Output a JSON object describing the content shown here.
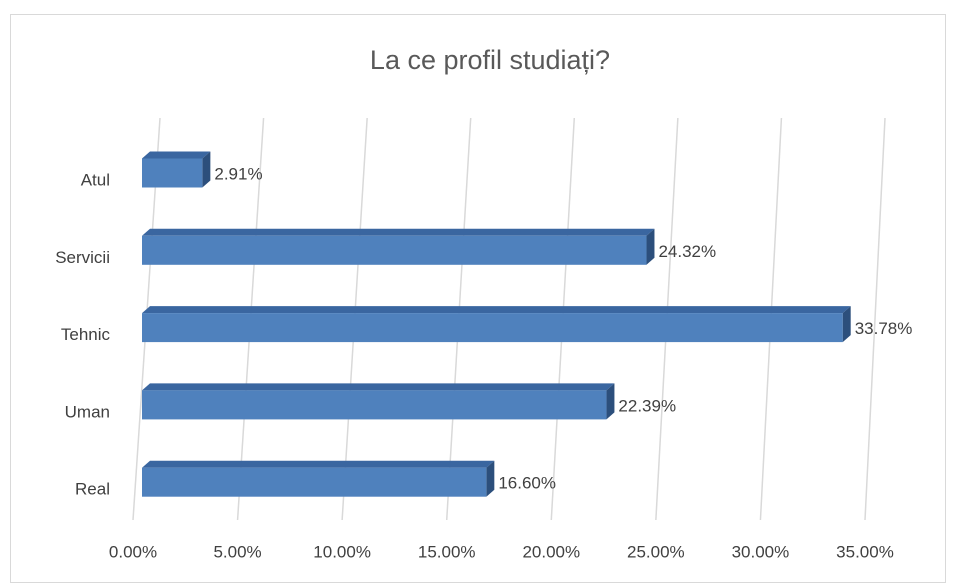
{
  "chart_data": {
    "type": "bar3d-horizontal",
    "title": "La ce profil studiați?",
    "categories": [
      "Atul",
      "Servicii",
      "Tehnic",
      "Uman",
      "Real"
    ],
    "values": [
      2.91,
      24.32,
      33.78,
      22.39,
      16.6
    ],
    "value_labels": [
      "2.91%",
      "24.32%",
      "33.78%",
      "22.39%",
      "16.60%"
    ],
    "color": "#4f81bd",
    "xlim": [
      0,
      35
    ],
    "xticks": [
      {
        "value": 0,
        "label": "0.00%"
      },
      {
        "value": 5,
        "label": "5.00%"
      },
      {
        "value": 10,
        "label": "10.00%"
      },
      {
        "value": 15,
        "label": "15.00%"
      },
      {
        "value": 20,
        "label": "20.00%"
      },
      {
        "value": 25,
        "label": "25.00%"
      },
      {
        "value": 30,
        "label": "30.00%"
      },
      {
        "value": 35,
        "label": "35.00%"
      }
    ],
    "grid": true
  }
}
